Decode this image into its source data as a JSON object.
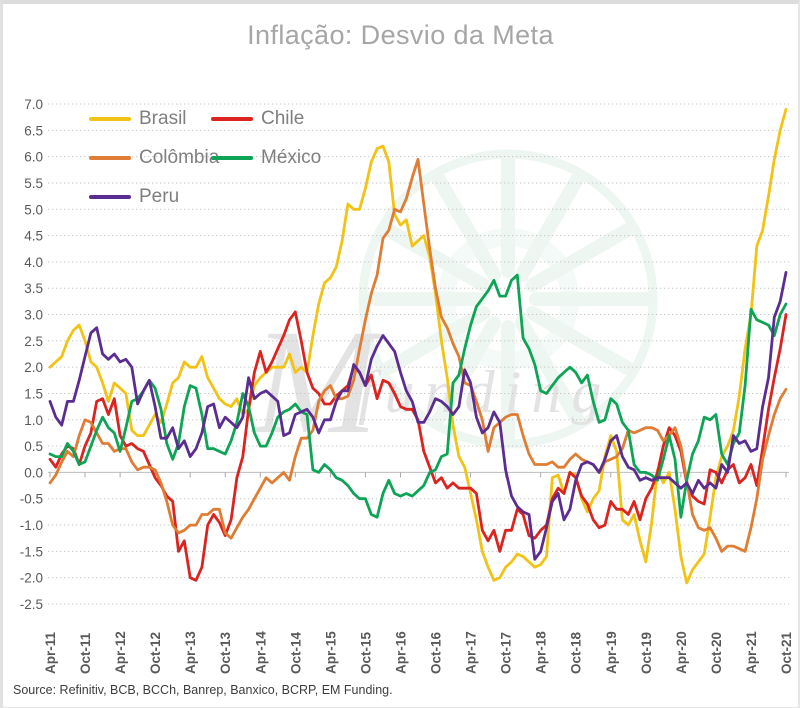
{
  "header": {
    "title": "Inflação: Desvio da Meta"
  },
  "source": {
    "text": "Source: Refinitiv, BCB, BCCh, Banrep, Banxico, BCRP, EM Funding."
  },
  "watermark": {
    "letter": "M",
    "word": "funding"
  },
  "chart_data": {
    "type": "line",
    "title": "Inflação: Desvio da Meta",
    "xlabel": "",
    "ylabel": "",
    "ylim": [
      -2.5,
      7.0
    ],
    "y_tick_step": 0.5,
    "y_tick_labels": [
      "7.0",
      "6.5",
      "6.0",
      "5.5",
      "5.0",
      "4.5",
      "4.0",
      "3.5",
      "3.0",
      "2.5",
      "2.0",
      "1.5",
      "1.0",
      "0.5",
      "0.0",
      "-0.5",
      "-1.0",
      "-1.5",
      "-2.0",
      "-2.5"
    ],
    "grid": "dotted horizontal, solid zero line",
    "legend_position": "top-left inside plot",
    "x_start": "Apr-2011",
    "x_end": "Oct-2021",
    "x_points": 127,
    "x_tick_month_indices": [
      0,
      6,
      12,
      18,
      24,
      30,
      36,
      42,
      48,
      54,
      60,
      66,
      72,
      78,
      84,
      90,
      96,
      102,
      108,
      114,
      120,
      126
    ],
    "x_tick_labels": [
      "Apr-11",
      "Oct-11",
      "Apr-12",
      "Oct-12",
      "Apr-13",
      "Oct-13",
      "Apr-14",
      "Oct-14",
      "Apr-15",
      "Oct-15",
      "Apr-16",
      "Oct-16",
      "Apr-17",
      "Oct-17",
      "Apr-18",
      "Oct-18",
      "Apr-19",
      "Oct-19",
      "Apr-20",
      "Oct-20",
      "Apr-21",
      "Oct-21"
    ],
    "series": [
      {
        "name": "Brasil",
        "color": "#F2C314",
        "values": [
          2.0,
          2.1,
          2.2,
          2.5,
          2.7,
          2.8,
          2.5,
          2.1,
          2.0,
          1.7,
          1.35,
          1.7,
          1.6,
          1.5,
          0.8,
          0.7,
          0.7,
          0.9,
          1.1,
          0.95,
          1.3,
          1.7,
          1.8,
          2.1,
          2.0,
          2.0,
          2.2,
          1.8,
          1.6,
          1.4,
          1.3,
          1.25,
          1.4,
          1.1,
          1.2,
          1.65,
          1.8,
          1.9,
          2.0,
          2.0,
          2.0,
          2.25,
          1.9,
          2.0,
          1.9,
          2.6,
          3.2,
          3.6,
          3.7,
          3.9,
          4.4,
          5.1,
          5.0,
          5.0,
          5.4,
          5.9,
          6.15,
          6.2,
          5.9,
          4.9,
          4.7,
          4.8,
          4.3,
          4.4,
          4.5,
          4.1,
          3.4,
          2.5,
          1.8,
          0.9,
          0.3,
          0.1,
          -0.4,
          -0.9,
          -1.5,
          -1.8,
          -2.05,
          -2.0,
          -1.8,
          -1.7,
          -1.55,
          -1.6,
          -1.7,
          -1.8,
          -1.75,
          -1.6,
          -0.1,
          -0.05,
          -0.4,
          0.0,
          -0.05,
          -0.5,
          -0.75,
          -0.5,
          -0.35,
          0.3,
          0.7,
          0.4,
          -0.9,
          -1.0,
          -0.8,
          -1.3,
          -1.7,
          -0.95,
          0.05,
          -0.2,
          0.0,
          -0.7,
          -1.6,
          -2.1,
          -1.85,
          -1.7,
          -1.55,
          -0.85,
          -0.1,
          0.3,
          0.5,
          0.8,
          1.45,
          2.35,
          3.0,
          4.3,
          4.6,
          5.25,
          5.95,
          6.5,
          6.9
        ]
      },
      {
        "name": "Chile",
        "color": "#DB231F",
        "values": [
          0.25,
          0.1,
          0.35,
          0.5,
          0.45,
          0.15,
          0.5,
          0.75,
          1.35,
          1.4,
          1.1,
          1.4,
          0.7,
          0.5,
          0.55,
          0.45,
          0.4,
          0.15,
          -0.1,
          -0.25,
          -0.45,
          -0.55,
          -1.5,
          -1.3,
          -2.0,
          -2.05,
          -1.8,
          -1.0,
          -0.8,
          -0.95,
          -1.2,
          -0.9,
          -0.1,
          0.3,
          1.2,
          1.9,
          2.3,
          1.9,
          2.1,
          2.35,
          2.6,
          2.9,
          3.05,
          2.5,
          1.9,
          1.6,
          1.5,
          1.3,
          1.3,
          1.45,
          1.55,
          1.65,
          2.0,
          1.9,
          1.65,
          1.85,
          1.4,
          1.75,
          1.7,
          1.5,
          1.25,
          1.2,
          1.2,
          1.0,
          0.4,
          0.1,
          -0.2,
          -0.1,
          -0.3,
          -0.2,
          -0.3,
          -0.3,
          -0.3,
          -0.4,
          -1.1,
          -1.3,
          -1.1,
          -1.5,
          -1.1,
          -1.1,
          -0.7,
          -0.8,
          -1.2,
          -1.25,
          -1.1,
          -1.0,
          -0.5,
          -0.3,
          -0.4,
          0.0,
          -0.1,
          -0.45,
          -0.6,
          -0.9,
          -1.05,
          -1.0,
          -0.55,
          -0.7,
          -0.7,
          -0.8,
          -0.55,
          -0.9,
          -0.5,
          -0.3,
          0.0,
          0.5,
          0.85,
          0.7,
          0.4,
          -0.2,
          -0.45,
          -0.55,
          -0.6,
          0.05,
          0.0,
          -0.2,
          0.05,
          0.15,
          -0.2,
          -0.1,
          0.15,
          -0.25,
          0.45,
          1.2,
          1.8,
          2.35,
          3.0
        ]
      },
      {
        "name": "Colômbia",
        "color": "#DE7D33",
        "values": [
          -0.2,
          -0.05,
          0.2,
          0.4,
          0.3,
          0.7,
          1.0,
          0.95,
          0.75,
          0.55,
          0.55,
          0.4,
          0.45,
          0.45,
          0.2,
          0.05,
          0.1,
          0.1,
          0.05,
          -0.2,
          -0.55,
          -1.0,
          -1.15,
          -1.1,
          -1.0,
          -1.0,
          -0.8,
          -0.8,
          -0.7,
          -0.7,
          -1.15,
          -1.25,
          -1.05,
          -0.85,
          -0.7,
          -0.5,
          -0.3,
          -0.1,
          -0.2,
          -0.1,
          0.0,
          -0.15,
          0.3,
          0.65,
          0.65,
          0.8,
          1.35,
          1.55,
          1.65,
          1.4,
          1.4,
          1.45,
          1.75,
          2.35,
          2.9,
          3.4,
          3.75,
          4.45,
          4.6,
          5.0,
          4.95,
          5.2,
          5.6,
          5.95,
          5.1,
          4.25,
          3.5,
          2.95,
          2.75,
          2.45,
          2.2,
          1.7,
          1.65,
          1.35,
          1.0,
          0.4,
          0.85,
          0.95,
          1.05,
          1.1,
          1.1,
          0.7,
          0.35,
          0.15,
          0.15,
          0.15,
          0.2,
          0.1,
          0.1,
          0.25,
          0.35,
          0.25,
          0.2,
          0.15,
          0.0,
          0.2,
          0.25,
          0.3,
          0.45,
          0.8,
          0.75,
          0.8,
          0.85,
          0.85,
          0.8,
          0.6,
          0.7,
          0.85,
          0.5,
          -0.15,
          -0.8,
          -1.05,
          -1.1,
          -1.05,
          -1.25,
          -1.5,
          -1.4,
          -1.4,
          -1.45,
          -1.5,
          -1.05,
          -0.5,
          0.25,
          0.7,
          1.1,
          1.4,
          1.58
        ]
      },
      {
        "name": "México",
        "color": "#0EA455",
        "values": [
          0.35,
          0.3,
          0.3,
          0.55,
          0.4,
          0.15,
          0.2,
          0.5,
          0.8,
          1.05,
          0.85,
          0.75,
          0.4,
          0.85,
          1.35,
          1.4,
          1.55,
          1.75,
          1.6,
          1.2,
          0.55,
          0.25,
          0.55,
          1.25,
          1.65,
          1.6,
          1.1,
          0.45,
          0.45,
          0.4,
          0.35,
          0.6,
          0.95,
          1.5,
          1.25,
          0.75,
          0.5,
          0.5,
          0.75,
          1.05,
          1.15,
          1.2,
          1.3,
          1.15,
          1.1,
          0.05,
          0.0,
          0.15,
          0.05,
          -0.1,
          -0.15,
          -0.25,
          -0.4,
          -0.5,
          -0.5,
          -0.8,
          -0.85,
          -0.4,
          -0.15,
          -0.4,
          -0.45,
          -0.4,
          -0.45,
          -0.35,
          -0.25,
          0.0,
          0.05,
          0.3,
          0.35,
          1.7,
          1.85,
          2.35,
          2.8,
          3.15,
          3.3,
          3.45,
          3.65,
          3.35,
          3.35,
          3.65,
          3.75,
          2.55,
          2.35,
          2.05,
          1.55,
          1.5,
          1.65,
          1.8,
          1.9,
          2.0,
          1.9,
          1.7,
          1.85,
          1.35,
          0.95,
          1.0,
          1.4,
          1.3,
          0.95,
          0.8,
          0.15,
          0.0,
          0.0,
          -0.05,
          -0.15,
          0.25,
          0.7,
          0.25,
          -0.85,
          -0.15,
          0.35,
          0.6,
          1.05,
          1.0,
          1.1,
          0.35,
          0.15,
          0.55,
          0.75,
          1.65,
          3.1,
          2.9,
          2.85,
          2.8,
          2.6,
          3.0,
          3.2
        ]
      },
      {
        "name": "Peru",
        "color": "#5C2D91",
        "values": [
          1.35,
          1.05,
          0.9,
          1.35,
          1.35,
          1.75,
          2.2,
          2.65,
          2.75,
          2.25,
          2.15,
          2.25,
          2.1,
          2.15,
          2.0,
          1.3,
          1.55,
          1.75,
          1.25,
          0.65,
          0.65,
          0.85,
          0.45,
          0.6,
          0.3,
          0.45,
          0.75,
          1.25,
          1.3,
          0.85,
          1.05,
          0.95,
          0.85,
          1.05,
          1.8,
          1.4,
          1.5,
          1.55,
          1.45,
          1.35,
          0.7,
          0.75,
          1.1,
          1.15,
          1.2,
          1.05,
          0.75,
          1.0,
          1.0,
          1.35,
          1.55,
          1.55,
          2.05,
          1.9,
          1.65,
          2.15,
          2.4,
          2.6,
          2.45,
          2.3,
          1.9,
          1.55,
          1.35,
          0.95,
          0.95,
          1.15,
          1.4,
          1.35,
          1.25,
          1.1,
          1.25,
          1.95,
          1.7,
          1.05,
          0.75,
          0.85,
          1.15,
          0.95,
          0.05,
          -0.45,
          -0.65,
          -0.75,
          -0.8,
          -1.65,
          -1.5,
          -1.05,
          -0.55,
          -0.4,
          -0.9,
          -0.7,
          -0.15,
          0.15,
          0.2,
          0.15,
          0.0,
          0.25,
          0.6,
          0.7,
          0.3,
          0.1,
          0.05,
          -0.15,
          -0.1,
          -0.15,
          -0.1,
          -0.1,
          -0.1,
          -0.2,
          -0.3,
          -0.2,
          -0.4,
          -0.15,
          -0.3,
          -0.2,
          -0.3,
          0.15,
          0.0,
          0.7,
          0.55,
          0.6,
          0.4,
          0.45,
          1.25,
          1.8,
          2.95,
          3.25,
          3.8
        ]
      }
    ]
  }
}
